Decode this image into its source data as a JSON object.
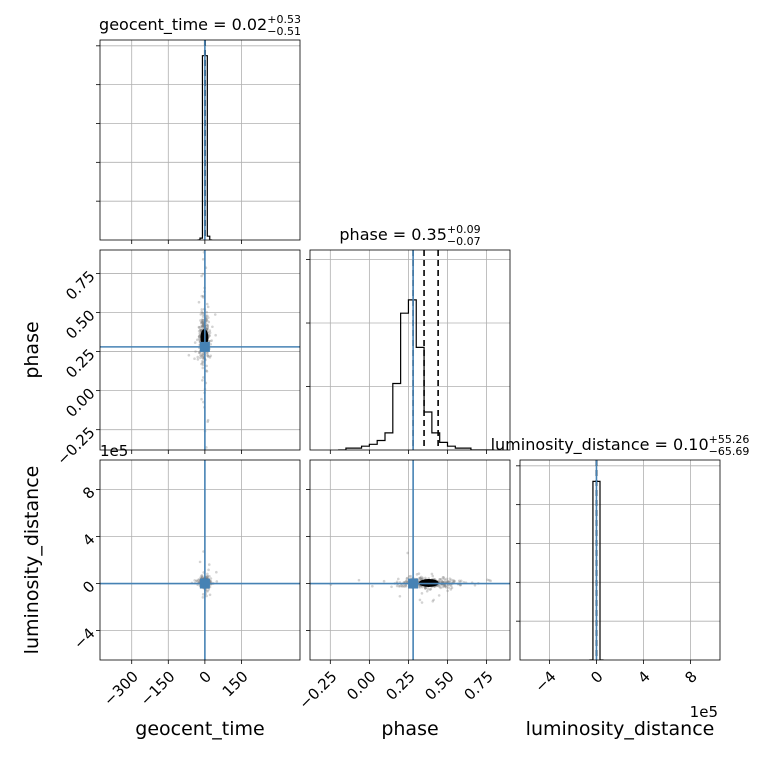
{
  "chart_data": {
    "type": "corner",
    "parameters": [
      "geocent_time",
      "phase",
      "luminosity_distance"
    ],
    "truths": {
      "geocent_time": 0,
      "phase": 0.28,
      "luminosity_distance": 0
    },
    "colors": {
      "truth": "#4682b4",
      "contour": "#000000",
      "scatter": "#808080",
      "grid": "#b0b0b0"
    },
    "grid": true,
    "axes": {
      "geocent_time": {
        "label": "geocent_time",
        "range": [
          -430,
          390
        ],
        "ticks": [
          -300,
          -150,
          0,
          150
        ],
        "tick_labels": [
          "−300",
          "−150",
          "0",
          "150"
        ]
      },
      "phase": {
        "label": "phase",
        "range": [
          -0.38,
          0.9
        ],
        "ticks": [
          -0.25,
          0,
          0.25,
          0.5,
          0.75
        ],
        "tick_labels": [
          "−0.25",
          "0.00",
          "0.25",
          "0.50",
          "0.75"
        ]
      },
      "luminosity_distance": {
        "label": "luminosity_distance",
        "range": [
          -6.5,
          10.5
        ],
        "ticks": [
          -4,
          0,
          4,
          8
        ],
        "tick_labels": [
          "−4",
          "0",
          "4",
          "8"
        ],
        "offset_label": "1e5"
      }
    },
    "diagonal": [
      {
        "param": "geocent_time",
        "title_prefix": "geocent_time = ",
        "median": "0.02",
        "upper": "+0.53",
        "lower": "−0.51",
        "quantiles": [
          -0.49,
          0.02,
          0.55
        ],
        "bins": [
          -30,
          -20,
          -10,
          0,
          10,
          20,
          30
        ],
        "counts": [
          0.0,
          0.01,
          0.97,
          0.97,
          0.02,
          0.0
        ]
      },
      {
        "param": "phase",
        "title_prefix": "phase = ",
        "median": "0.35",
        "upper": "+0.09",
        "lower": "−0.07",
        "quantiles": [
          0.28,
          0.35,
          0.44
        ],
        "bins": [
          -0.2,
          -0.15,
          -0.1,
          -0.05,
          0.0,
          0.05,
          0.1,
          0.15,
          0.2,
          0.25,
          0.3,
          0.35,
          0.4,
          0.45,
          0.5,
          0.55,
          0.6,
          0.65,
          0.7,
          0.75,
          0.8
        ],
        "counts": [
          0.0,
          0.01,
          0.01,
          0.02,
          0.03,
          0.05,
          0.09,
          0.35,
          0.72,
          0.79,
          0.54,
          0.2,
          0.09,
          0.04,
          0.02,
          0.01,
          0.01,
          0.0,
          0.0,
          0.0
        ]
      },
      {
        "param": "luminosity_distance",
        "title_prefix": "luminosity_distance = ",
        "median": "0.10",
        "upper": "+55.26",
        "lower": "−65.69",
        "quantiles": [
          -0.0066,
          0.0,
          0.0055
        ],
        "bins": [
          -0.6,
          -0.3,
          0.0,
          0.3,
          0.6
        ],
        "counts": [
          0.0,
          0.94,
          0.94,
          0.0
        ]
      }
    ],
    "offdiagonal": [
      {
        "x": "geocent_time",
        "y": "phase",
        "center": [
          -2,
          0.34
        ],
        "spread": [
          8,
          0.06
        ]
      },
      {
        "x": "geocent_time",
        "y": "luminosity_distance",
        "center": [
          0,
          0.1
        ],
        "spread": [
          8,
          0.15
        ]
      },
      {
        "x": "phase",
        "y": "luminosity_distance",
        "center": [
          0.38,
          0.05
        ],
        "spread": [
          0.07,
          0.15
        ]
      }
    ]
  }
}
